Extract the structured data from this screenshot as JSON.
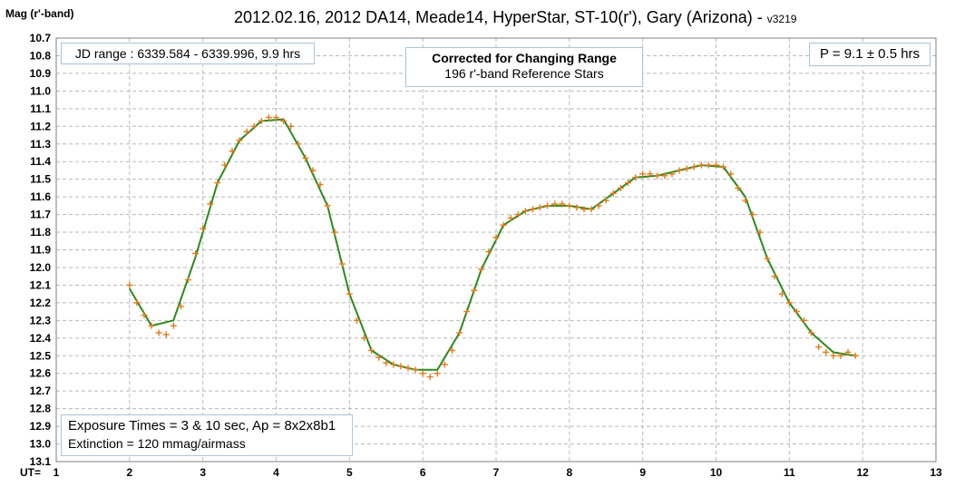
{
  "title": "2012.02.16, 2012 DA14, Meade14, HyperStar, ST-10(r'), Gary (Arizona) - ",
  "version": "v3219",
  "ylabel": "Mag (r'-band)",
  "xlabel": "UT=",
  "jd_range": "JD range : 6339.584 - 6339.996, 9.9 hrs",
  "correction_title": "Corrected for Changing Range",
  "correction_subtitle": "196 r'-band Reference Stars",
  "period": "P = 9.1 ± 0.5 hrs",
  "exposure": "Exposure Times = 3 & 10 sec, Ap = 8x2x8b1",
  "extinction": "Extinction = 120 mmag/airmass",
  "colors": {
    "points": "#e07b1c",
    "fit": "#2a8a1a",
    "grid": "#b8b8b8"
  },
  "chart_data": {
    "type": "scatter",
    "xlim": [
      1,
      13
    ],
    "ylim": [
      10.7,
      13.1
    ],
    "y_inverted": true,
    "x_ticks": [
      1,
      2,
      3,
      4,
      5,
      6,
      7,
      8,
      9,
      10,
      11,
      12,
      13
    ],
    "y_ticks": [
      10.7,
      10.8,
      10.9,
      11.0,
      11.1,
      11.2,
      11.3,
      11.4,
      11.5,
      11.6,
      11.7,
      11.8,
      11.9,
      12.0,
      12.1,
      12.2,
      12.3,
      12.4,
      12.5,
      12.6,
      12.7,
      12.8,
      12.9,
      13.0,
      13.1
    ],
    "grid": true,
    "series": [
      {
        "marker": "+",
        "x": [
          2.0,
          2.1,
          2.2,
          2.3,
          2.4,
          2.5,
          2.6,
          2.7,
          2.8,
          2.9,
          3.0,
          3.1,
          3.2,
          3.3,
          3.4,
          3.5,
          3.6,
          3.7,
          3.8,
          3.9,
          4.0,
          4.1,
          4.2,
          4.3,
          4.4,
          4.5,
          4.6,
          4.7,
          4.8,
          4.9,
          5.0,
          5.1,
          5.2,
          5.3,
          5.4,
          5.5,
          5.6,
          5.7,
          5.8,
          5.9,
          6.0,
          6.1,
          6.2,
          6.3,
          6.4,
          6.5,
          6.6,
          6.7,
          6.8,
          6.9,
          7.0,
          7.1,
          7.2,
          7.3,
          7.4,
          7.5,
          7.6,
          7.7,
          7.8,
          7.9,
          8.0,
          8.1,
          8.2,
          8.3,
          8.4,
          8.5,
          8.6,
          8.7,
          8.8,
          8.9,
          9.0,
          9.1,
          9.2,
          9.3,
          9.4,
          9.5,
          9.6,
          9.7,
          9.8,
          9.9,
          10.0,
          10.1,
          10.2,
          10.3,
          10.4,
          10.5,
          10.6,
          10.7,
          10.8,
          10.9,
          11.0,
          11.1,
          11.2,
          11.3,
          11.4,
          11.5,
          11.6,
          11.7,
          11.8,
          11.9
        ],
        "y": [
          12.1,
          12.2,
          12.27,
          12.33,
          12.37,
          12.38,
          12.33,
          12.22,
          12.07,
          11.92,
          11.78,
          11.64,
          11.52,
          11.42,
          11.34,
          11.28,
          11.23,
          11.2,
          11.17,
          11.15,
          11.15,
          11.17,
          11.2,
          11.3,
          11.38,
          11.45,
          11.53,
          11.65,
          11.8,
          11.98,
          12.15,
          12.3,
          12.4,
          12.47,
          12.51,
          12.54,
          12.55,
          12.56,
          12.57,
          12.58,
          12.6,
          12.62,
          12.6,
          12.55,
          12.47,
          12.37,
          12.25,
          12.13,
          12.01,
          11.91,
          11.83,
          11.76,
          11.72,
          11.7,
          11.68,
          11.67,
          11.66,
          11.65,
          11.64,
          11.64,
          11.65,
          11.66,
          11.67,
          11.67,
          11.65,
          11.62,
          11.58,
          11.55,
          11.52,
          11.49,
          11.47,
          11.47,
          11.48,
          11.48,
          11.47,
          11.45,
          11.44,
          11.43,
          11.42,
          11.42,
          11.42,
          11.43,
          11.47,
          11.55,
          11.62,
          11.7,
          11.8,
          11.95,
          12.05,
          12.15,
          12.2,
          12.25,
          12.3,
          12.37,
          12.45,
          12.48,
          12.5,
          12.5,
          12.48,
          12.5
        ]
      },
      {
        "name": "fit",
        "x": [
          2.0,
          2.3,
          2.6,
          2.9,
          3.2,
          3.5,
          3.8,
          4.1,
          4.4,
          4.7,
          5.0,
          5.3,
          5.6,
          5.9,
          6.2,
          6.5,
          6.8,
          7.1,
          7.4,
          7.7,
          8.0,
          8.3,
          8.6,
          8.9,
          9.2,
          9.5,
          9.8,
          10.1,
          10.4,
          10.7,
          11.0,
          11.3,
          11.6,
          11.9
        ],
        "y": [
          12.12,
          12.33,
          12.3,
          11.94,
          11.52,
          11.28,
          11.17,
          11.16,
          11.38,
          11.65,
          12.15,
          12.47,
          12.55,
          12.58,
          12.58,
          12.37,
          12.01,
          11.76,
          11.68,
          11.65,
          11.65,
          11.67,
          11.58,
          11.49,
          11.48,
          11.45,
          11.42,
          11.43,
          11.6,
          11.95,
          12.2,
          12.37,
          12.48,
          12.5
        ]
      }
    ]
  }
}
